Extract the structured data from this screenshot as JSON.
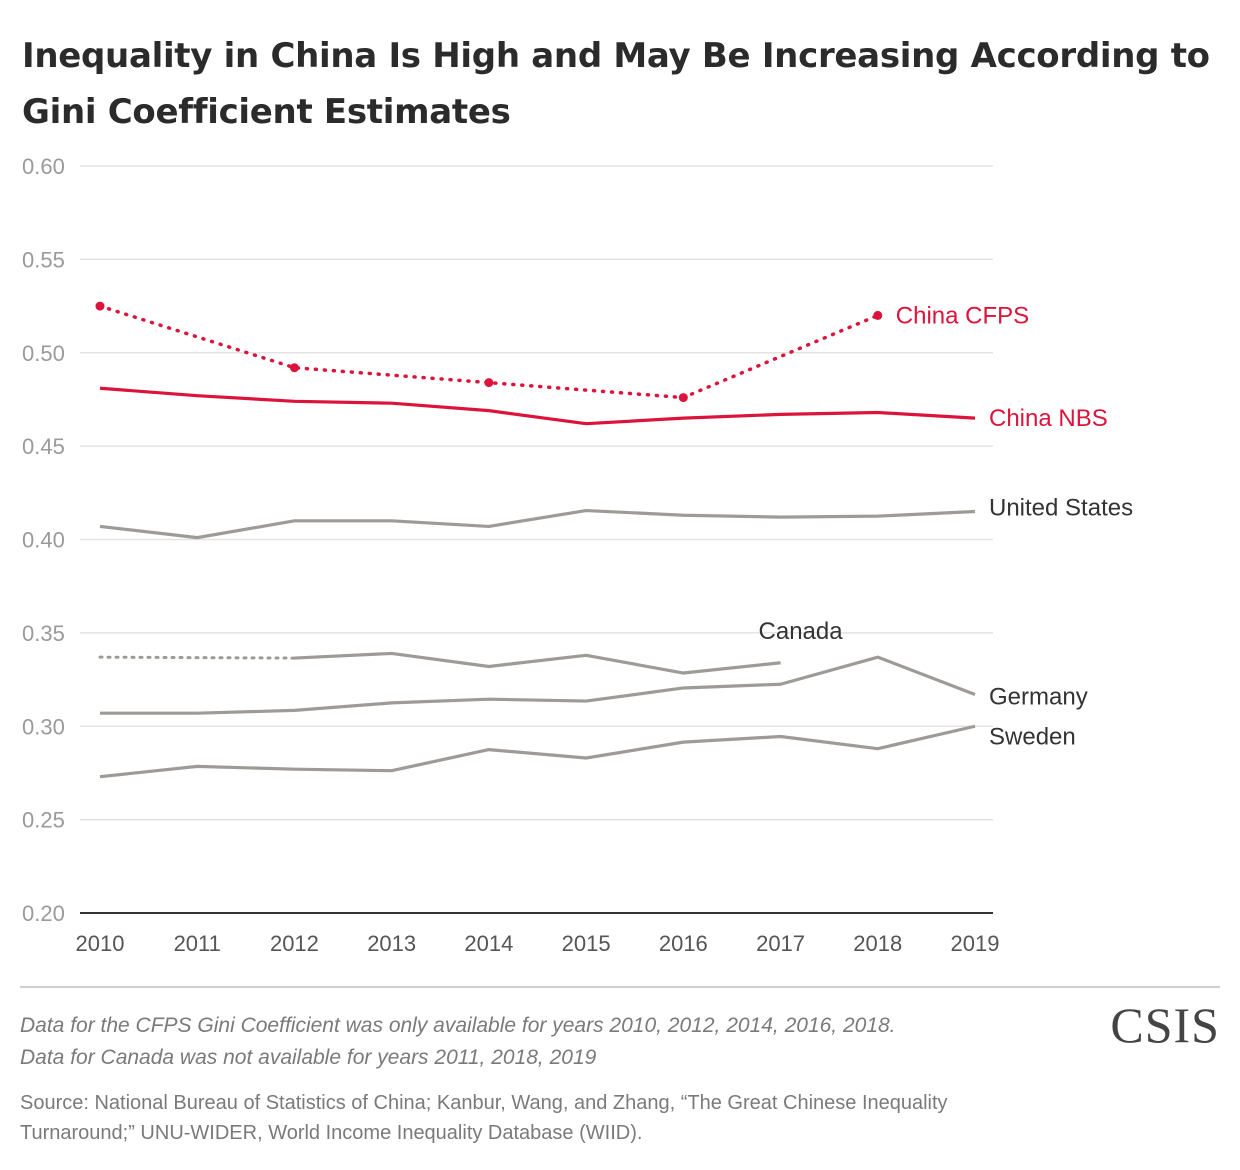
{
  "title": "Inequality in China Is High and May Be Increasing According to Gini Coefficient Estimates",
  "notes": [
    "Data for the CFPS Gini Coefficient was only available for years 2010, 2012, 2014, 2016, 2018.",
    "Data for Canada was not available for years 2011, 2018, 2019"
  ],
  "source": "Source: National Bureau of Statistics of China; Kanbur, Wang, and Zhang, “The Great Chinese Inequality Turnaround;” UNU-WIDER, World Income Inequality Database (WIID).",
  "logo": "CSIS",
  "chart_data": {
    "type": "line",
    "title": "Inequality in China Is High and May Be Increasing According to Gini Coefficient Estimates",
    "xlabel": "",
    "ylabel": "",
    "x": [
      2010,
      2011,
      2012,
      2013,
      2014,
      2015,
      2016,
      2017,
      2018,
      2019
    ],
    "ylim": [
      0.2,
      0.6
    ],
    "yticks": [
      "0.20",
      "0.25",
      "0.30",
      "0.35",
      "0.40",
      "0.45",
      "0.50",
      "0.55",
      "0.60"
    ],
    "grid": true,
    "legend": "direct labels at line ends",
    "series": [
      {
        "name": "China CFPS",
        "color": "#dc143c",
        "style": "dotted",
        "markers": true,
        "points": [
          [
            2010,
            0.525
          ],
          [
            2012,
            0.492
          ],
          [
            2014,
            0.484
          ],
          [
            2016,
            0.476
          ],
          [
            2018,
            0.52
          ]
        ]
      },
      {
        "name": "China NBS",
        "color": "#dc143c",
        "style": "solid",
        "points": [
          [
            2010,
            0.481
          ],
          [
            2011,
            0.477
          ],
          [
            2012,
            0.474
          ],
          [
            2013,
            0.473
          ],
          [
            2014,
            0.469
          ],
          [
            2015,
            0.462
          ],
          [
            2016,
            0.465
          ],
          [
            2017,
            0.467
          ],
          [
            2018,
            0.468
          ],
          [
            2019,
            0.465
          ]
        ]
      },
      {
        "name": "United States",
        "color": "#9e9b96",
        "style": "solid",
        "points": [
          [
            2010,
            0.407
          ],
          [
            2011,
            0.401
          ],
          [
            2012,
            0.41
          ],
          [
            2013,
            0.41
          ],
          [
            2014,
            0.407
          ],
          [
            2015,
            0.4155
          ],
          [
            2016,
            0.413
          ],
          [
            2017,
            0.412
          ],
          [
            2018,
            0.4125
          ],
          [
            2019,
            0.415
          ]
        ]
      },
      {
        "name": "Canada",
        "color": "#9e9b96",
        "style": "solid",
        "gap_style": "dotted",
        "points": [
          [
            2010,
            0.337
          ],
          [
            2012,
            0.3365
          ],
          [
            2013,
            0.339
          ],
          [
            2014,
            0.332
          ],
          [
            2015,
            0.338
          ],
          [
            2016,
            0.3285
          ],
          [
            2017,
            0.334
          ]
        ]
      },
      {
        "name": "Germany",
        "color": "#9e9b96",
        "style": "solid",
        "points": [
          [
            2010,
            0.307
          ],
          [
            2011,
            0.307
          ],
          [
            2012,
            0.3085
          ],
          [
            2013,
            0.3125
          ],
          [
            2014,
            0.3145
          ],
          [
            2015,
            0.3135
          ],
          [
            2016,
            0.3205
          ],
          [
            2017,
            0.3225
          ],
          [
            2018,
            0.337
          ],
          [
            2019,
            0.317
          ]
        ]
      },
      {
        "name": "Sweden",
        "color": "#9e9b96",
        "style": "solid",
        "points": [
          [
            2010,
            0.273
          ],
          [
            2011,
            0.2785
          ],
          [
            2012,
            0.277
          ],
          [
            2013,
            0.2762
          ],
          [
            2014,
            0.2875
          ],
          [
            2015,
            0.283
          ],
          [
            2016,
            0.2915
          ],
          [
            2017,
            0.2945
          ],
          [
            2018,
            0.288
          ],
          [
            2019,
            0.3
          ]
        ]
      }
    ],
    "label_colors": {
      "China CFPS": "#dc143c",
      "China NBS": "#dc143c",
      "United States": "#333333",
      "Canada": "#333333",
      "Germany": "#333333",
      "Sweden": "#333333"
    },
    "axis_color": "#333333",
    "gridline_color": "#e3e3e3",
    "tick_label_color": "#9a9a9a"
  }
}
